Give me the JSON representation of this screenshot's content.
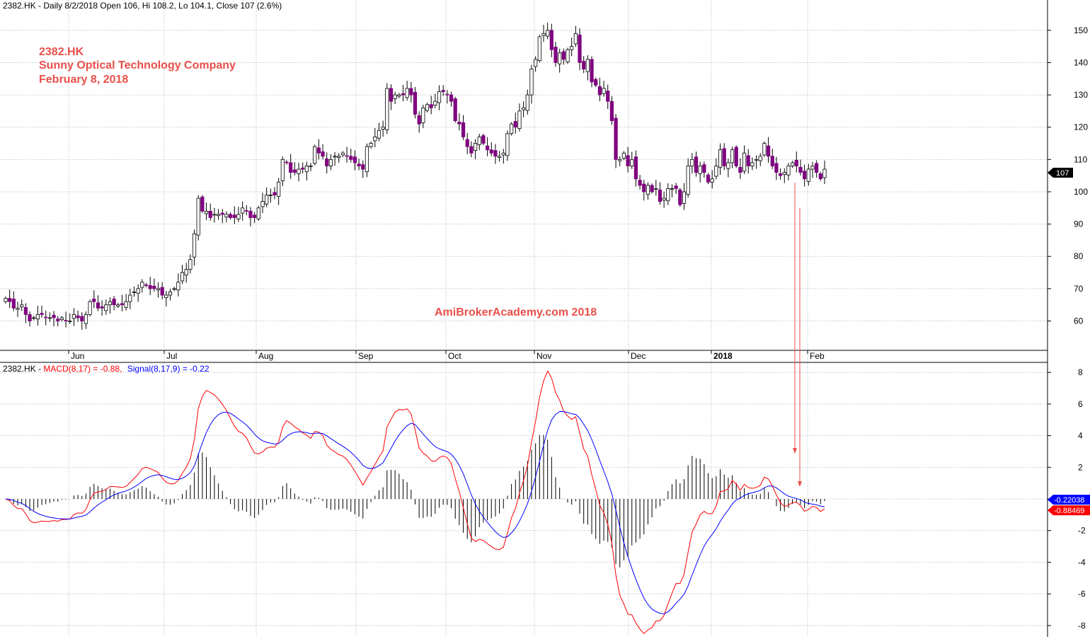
{
  "price_header": "2382.HK - Daily 8/2/2018 Open 106, Hi 108.2, Lo 104.1, Close 107 (2.6%)",
  "annotation": {
    "ticker": "2382.HK",
    "company": "Sunny Optical Technology Company",
    "date": "February 8, 2018"
  },
  "watermark": "AmiBrokerAcademy.com   2018",
  "macd_header": {
    "prefix": "2382.HK - ",
    "macd": "MACD(8,17) = -0.88,",
    "signal": "Signal(8,17,9) = -0.22"
  },
  "colors": {
    "up_candle": "#ffffff",
    "down_candle": "#800080",
    "macd_line": "#ff0000",
    "signal_line": "#0000ff",
    "histogram": "#000000",
    "annotation": "#e8504a",
    "arrow": "#e8504a"
  },
  "chart_data": [
    {
      "type": "candlestick",
      "title": "2382.HK - Daily 8/2/2018 Open 106, Hi 108.2, Lo 104.1, Close 107 (2.6%)",
      "x_labels": [
        "Jun",
        "Jul",
        "Aug",
        "Sep",
        "Oct",
        "Nov",
        "Dec",
        "2018",
        "Feb"
      ],
      "y_ticks": [
        60,
        70,
        80,
        90,
        100,
        110,
        120,
        130,
        140,
        150
      ],
      "ylim": [
        52,
        155
      ],
      "last_price": "107",
      "close_series": [
        67,
        66,
        64,
        64,
        65,
        62,
        60,
        61,
        62,
        62,
        61,
        61,
        61,
        60,
        61,
        60,
        60,
        62,
        61,
        60,
        62,
        66,
        66,
        64,
        64,
        65,
        66,
        65,
        65,
        65,
        66,
        68,
        69,
        70,
        72,
        71,
        70,
        70,
        70,
        68,
        68,
        69,
        70,
        72,
        75,
        76,
        79,
        87,
        98,
        94,
        94,
        92,
        93,
        93,
        93,
        93,
        92,
        92,
        93,
        95,
        94,
        92,
        92,
        95,
        97,
        99,
        99,
        99,
        103,
        110,
        109,
        106,
        106,
        107,
        107,
        108,
        108,
        114,
        112,
        111,
        108,
        110,
        111,
        111,
        112,
        111,
        110,
        109,
        108,
        107,
        114,
        115,
        117,
        119,
        120,
        132,
        128,
        130,
        130,
        130,
        132,
        130,
        124,
        121,
        126,
        127,
        126,
        128,
        131,
        131,
        130,
        128,
        122,
        121,
        117,
        114,
        112,
        115,
        117,
        115,
        113,
        112,
        111,
        111,
        112,
        118,
        121,
        120,
        125,
        126,
        130,
        138,
        141,
        148,
        149,
        150,
        144,
        140,
        143,
        141,
        144,
        145,
        149,
        140,
        138,
        141,
        134,
        133,
        130,
        132,
        128,
        122,
        110,
        110,
        112,
        108,
        110,
        104,
        102,
        100,
        102,
        100,
        101,
        97,
        98,
        101,
        101,
        101,
        96,
        100,
        108,
        110,
        106,
        108,
        106,
        103,
        104,
        108,
        113,
        108,
        109,
        113,
        108,
        106,
        112,
        108,
        109,
        110,
        111,
        115,
        111,
        108,
        106,
        105,
        106,
        108,
        109,
        108,
        106,
        104,
        107,
        108,
        106,
        104,
        107
      ]
    },
    {
      "type": "line",
      "title": "2382.HK - MACD(8,17) = -0.88, Signal(8,17,9) = -0.22",
      "x_labels": [
        "Jun",
        "Jul",
        "Aug",
        "Sep",
        "Oct",
        "Nov",
        "Dec",
        "2018",
        "Feb"
      ],
      "y_ticks": [
        -8,
        -6,
        -4,
        -2,
        0,
        2,
        4,
        6,
        8
      ],
      "ylim": [
        -8.5,
        8.5
      ],
      "series": [
        {
          "name": "MACD(8,17)",
          "color": "#ff0000",
          "last_value": "-0.88469",
          "values_key": "derived_from_close"
        },
        {
          "name": "Signal(8,17,9)",
          "color": "#0000ff",
          "last_value": "-0.22038",
          "values_key": "derived_from_close"
        }
      ]
    }
  ]
}
